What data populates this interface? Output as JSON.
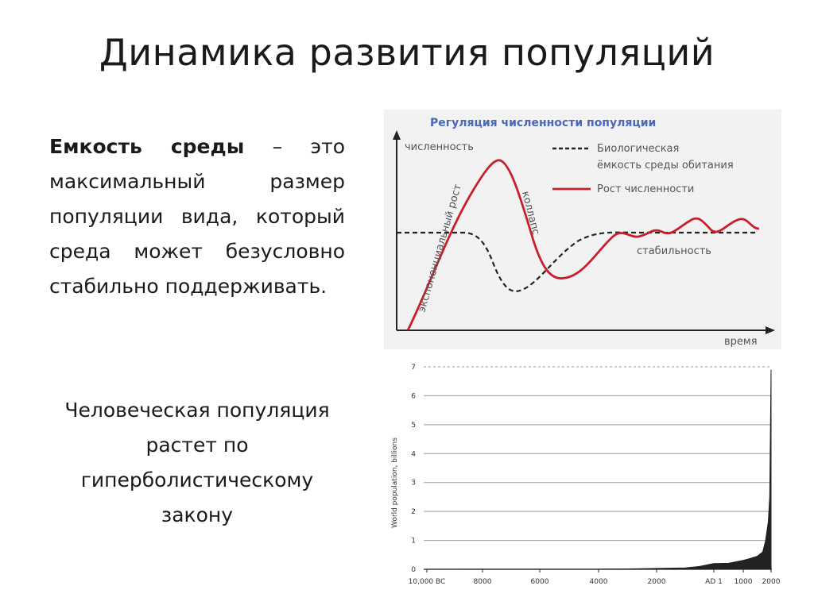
{
  "slide": {
    "title": "Динамика развития популяций",
    "definition": {
      "term": "Емкость среды",
      "text": " – это максимальный размер популяции вида, который среда может безусловно стабильно поддерживать."
    },
    "human_note": "Человеческая популяция растет по гиперболистическому закону"
  },
  "colors": {
    "growth_curve": "#c8202a",
    "capacity_line": "#222222",
    "regulation_title": "#4a68b8",
    "world_area": "#222222"
  },
  "chart_data": [
    {
      "type": "line",
      "title": "Регуляция численности популяции",
      "xlabel": "время",
      "ylabel": "численность",
      "grid": false,
      "legend_position": "top-right",
      "legend": [
        "Биологическая ёмкость среды обитания",
        "Рост численности"
      ],
      "annotations": [
        "экспоненциальный рост",
        "коллапс",
        "стабильность"
      ],
      "series": [
        {
          "name": "Биологическая ёмкость среды обитания",
          "style": "dashed"
        },
        {
          "name": "Рост численности",
          "style": "solid"
        }
      ]
    },
    {
      "type": "area",
      "ylabel": "World population, billions",
      "ylim": [
        0,
        7
      ],
      "yticks": [
        "0",
        "1",
        "2",
        "3",
        "4",
        "5",
        "6",
        "7"
      ],
      "xticks": [
        "10,000 BC",
        "8000",
        "6000",
        "4000",
        "2000",
        "AD 1",
        "1000",
        "2000"
      ],
      "grid": true,
      "x": [
        -10000,
        -8000,
        -6000,
        -4000,
        -3000,
        -2000,
        -1000,
        -500,
        1,
        500,
        1000,
        1200,
        1500,
        1700,
        1800,
        1900,
        1950,
        2000
      ],
      "values": [
        0.004,
        0.005,
        0.006,
        0.008,
        0.015,
        0.03,
        0.05,
        0.1,
        0.2,
        0.21,
        0.31,
        0.36,
        0.45,
        0.6,
        0.98,
        1.65,
        2.5,
        6.9
      ]
    }
  ]
}
